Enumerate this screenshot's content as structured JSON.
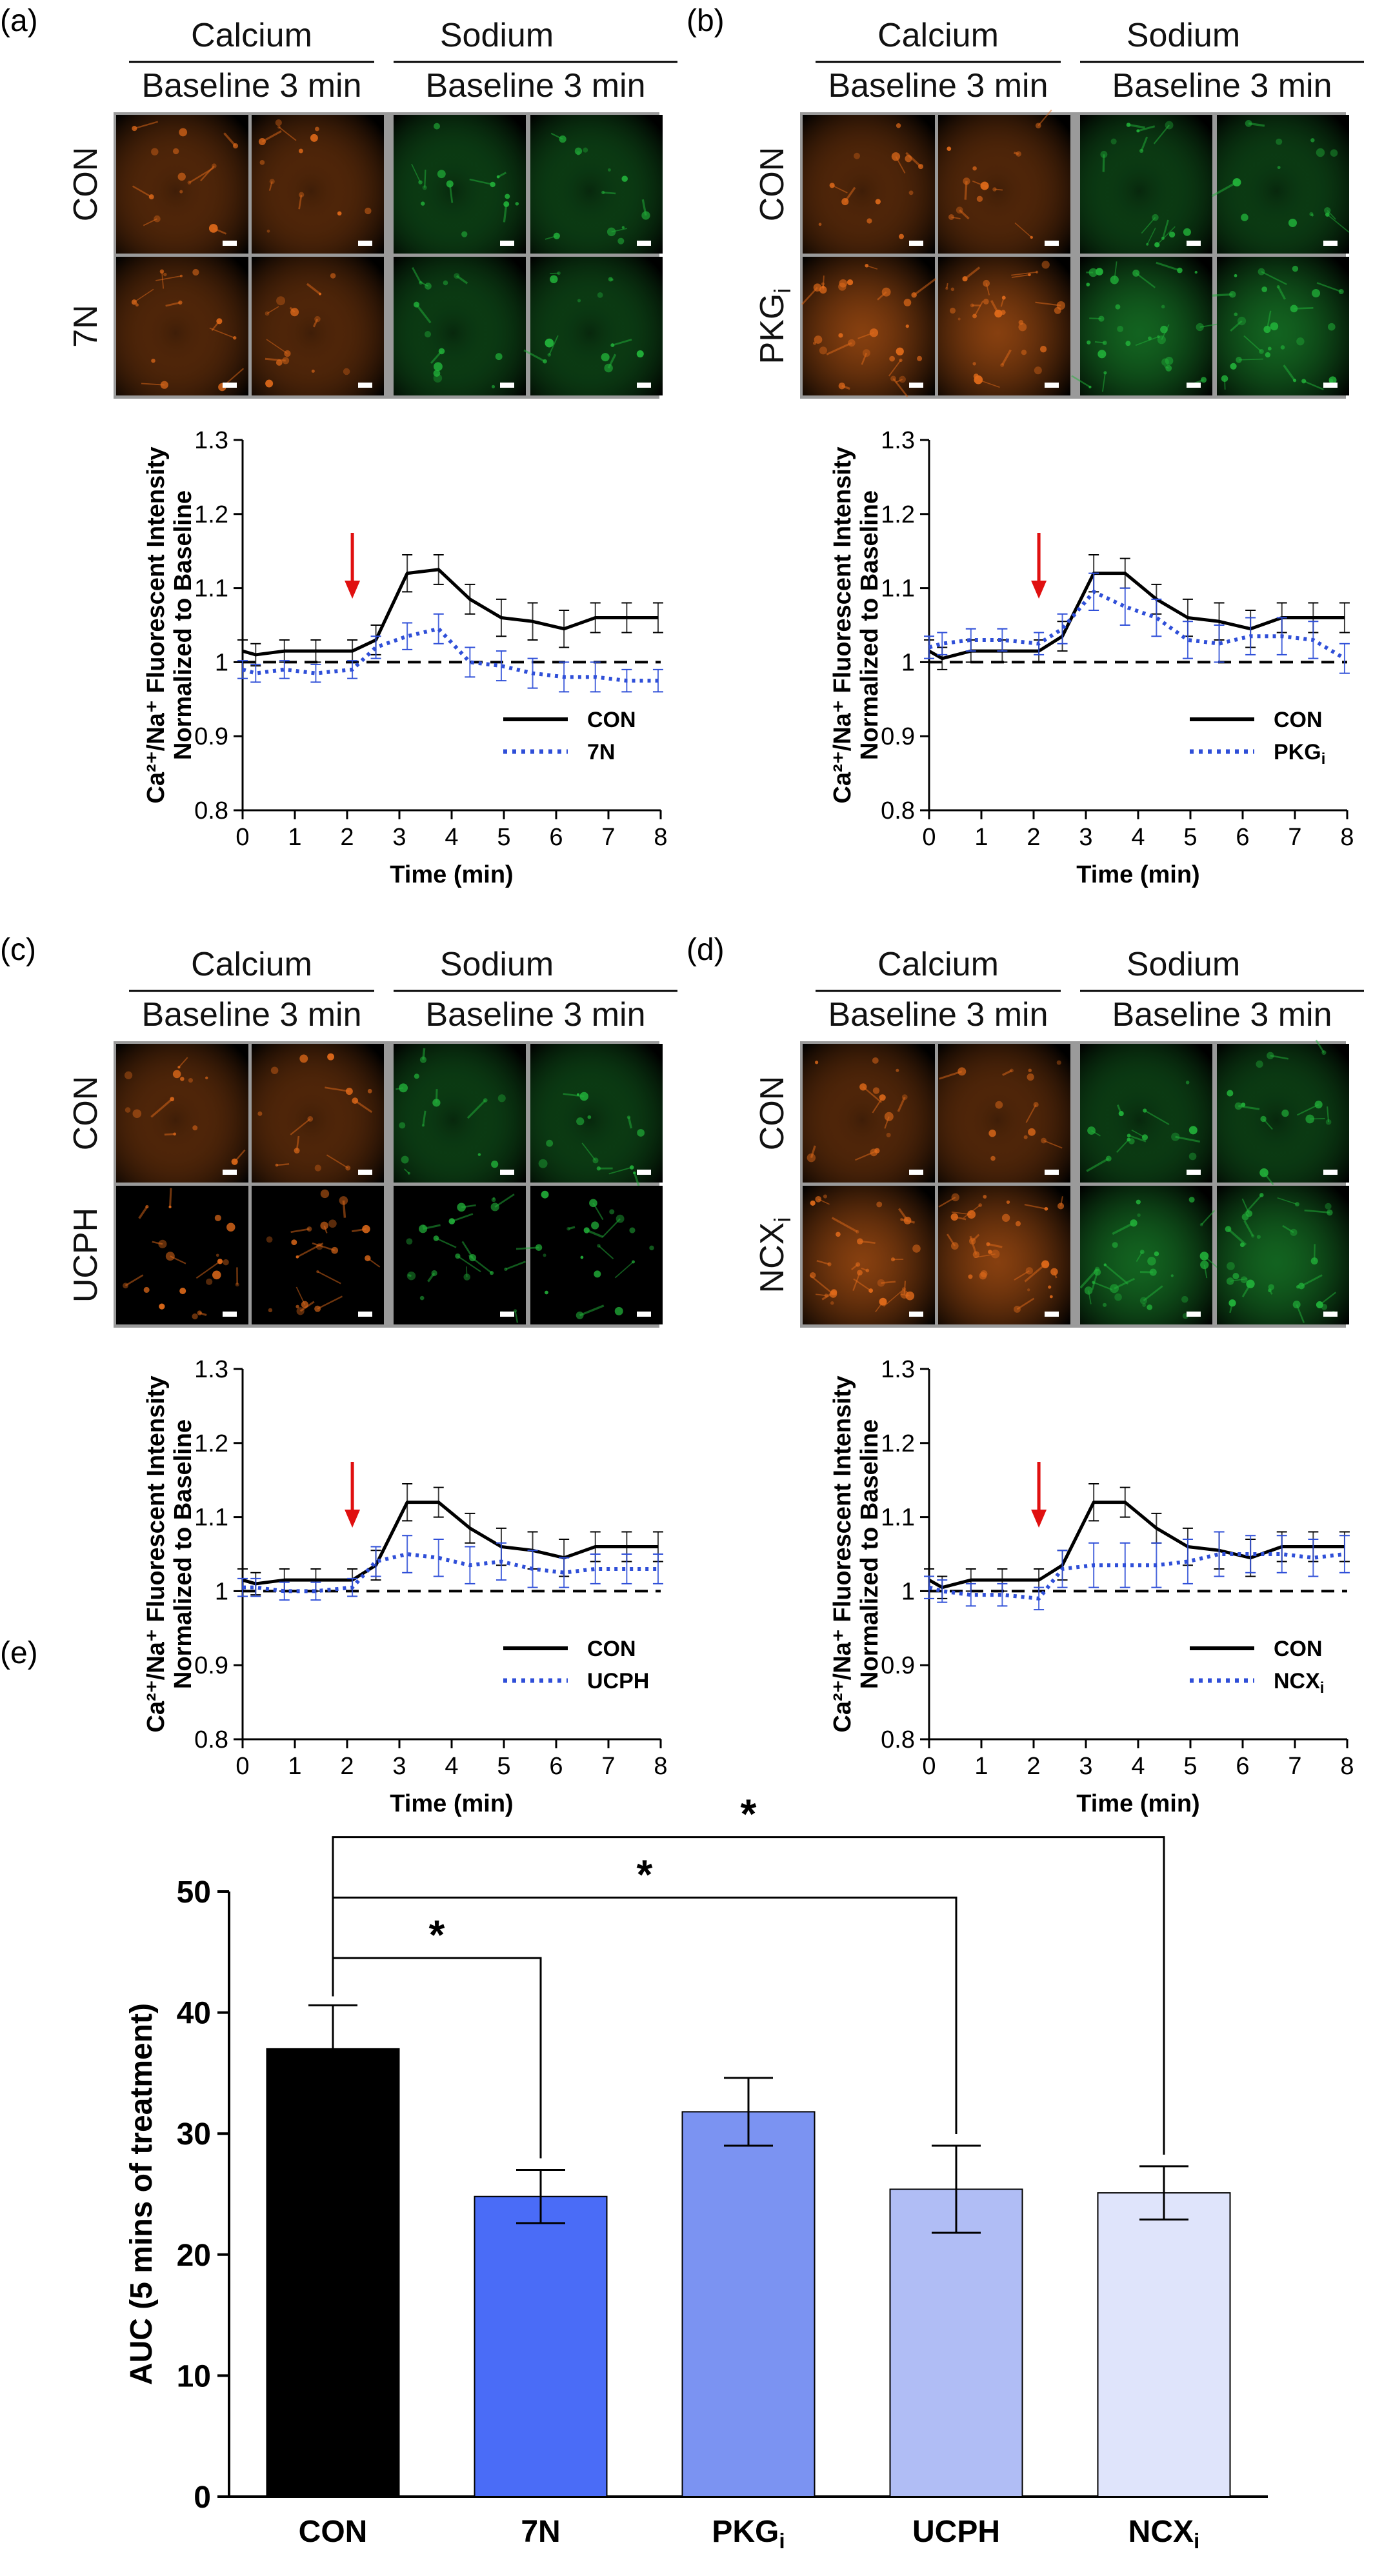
{
  "panels": [
    {
      "id": "a",
      "label": "(a)",
      "header_left": "Calcium",
      "header_right": "Sodium",
      "subheader": "Baseline 3 min",
      "row_labels": [
        {
          "text": "CON",
          "sub": ""
        },
        {
          "text": "7N",
          "sub": ""
        }
      ],
      "row2_intensity": "low"
    },
    {
      "id": "b",
      "label": "(b)",
      "header_left": "Calcium",
      "header_right": "Sodium",
      "subheader": "Baseline 3 min",
      "row_labels": [
        {
          "text": "CON",
          "sub": ""
        },
        {
          "text": "PKG",
          "sub": "i"
        }
      ],
      "row2_intensity": "high"
    },
    {
      "id": "c",
      "label": "(c)",
      "header_left": "Calcium",
      "header_right": "Sodium",
      "subheader": "Baseline 3 min",
      "row_labels": [
        {
          "text": "CON",
          "sub": ""
        },
        {
          "text": "UCPH",
          "sub": ""
        }
      ],
      "row2_intensity": "medium"
    },
    {
      "id": "d",
      "label": "(d)",
      "header_left": "Calcium",
      "header_right": "Sodium",
      "subheader": "Baseline 3 min",
      "row_labels": [
        {
          "text": "CON",
          "sub": ""
        },
        {
          "text": "NCX",
          "sub": "i"
        }
      ],
      "row2_intensity": "high"
    }
  ],
  "colors": {
    "con": "#000000",
    "treatment": "#2f4fd8",
    "arrow": "#e01010",
    "calcium": "#e06a1a",
    "sodium": "#22b33a",
    "frame": "#9a9a9a",
    "bars": [
      "#000000",
      "#4a6cf7",
      "#7b93f2",
      "#b0bdf5",
      "#dfe4fb"
    ]
  },
  "chart_data": [
    {
      "type": "line",
      "panel": "a",
      "xlabel": "Time (min)",
      "ylabel_line1": "Ca²⁺/Na⁺ Fluorescent Intensity",
      "ylabel_line2": "Normalized to Baseline",
      "xlim": [
        0,
        8
      ],
      "ylim": [
        0.8,
        1.3
      ],
      "xticks": [
        0,
        1,
        2,
        3,
        4,
        5,
        6,
        7,
        8
      ],
      "yticks": [
        "0.8",
        "0.9",
        "1",
        "1.1",
        "1.2",
        "1.3"
      ],
      "baseline": 1.0,
      "arrow_x": 2.1,
      "legend_position": "bottom-right",
      "x": [
        0.0,
        0.25,
        0.8,
        1.4,
        2.1,
        2.55,
        3.15,
        3.75,
        4.35,
        4.95,
        5.55,
        6.15,
        6.75,
        7.35,
        7.95
      ],
      "series": [
        {
          "name": "CON",
          "style": "solid",
          "values": [
            1.015,
            1.01,
            1.015,
            1.015,
            1.015,
            1.03,
            1.12,
            1.125,
            1.085,
            1.06,
            1.055,
            1.045,
            1.06,
            1.06,
            1.06
          ],
          "errors": [
            0.015,
            0.015,
            0.015,
            0.015,
            0.015,
            0.02,
            0.025,
            0.02,
            0.02,
            0.025,
            0.025,
            0.025,
            0.02,
            0.02,
            0.02
          ]
        },
        {
          "name": "7N",
          "sub": "",
          "style": "dotted",
          "values": [
            0.99,
            0.985,
            0.99,
            0.985,
            0.99,
            1.02,
            1.035,
            1.045,
            1.0,
            0.995,
            0.985,
            0.98,
            0.98,
            0.975,
            0.975
          ],
          "errors": [
            0.012,
            0.012,
            0.012,
            0.012,
            0.012,
            0.015,
            0.018,
            0.02,
            0.02,
            0.02,
            0.02,
            0.02,
            0.02,
            0.015,
            0.015
          ]
        }
      ]
    },
    {
      "type": "line",
      "panel": "b",
      "xlabel": "Time (min)",
      "ylabel_line1": "Ca²⁺/Na⁺ Fluorescent Intensity",
      "ylabel_line2": "Normalized to Baseline",
      "xlim": [
        0,
        8
      ],
      "ylim": [
        0.8,
        1.3
      ],
      "xticks": [
        0,
        1,
        2,
        3,
        4,
        5,
        6,
        7,
        8
      ],
      "yticks": [
        "0.8",
        "0.9",
        "1",
        "1.1",
        "1.2",
        "1.3"
      ],
      "baseline": 1.0,
      "arrow_x": 2.1,
      "legend_position": "bottom-right",
      "x": [
        0.0,
        0.25,
        0.8,
        1.4,
        2.1,
        2.55,
        3.15,
        3.75,
        4.35,
        4.95,
        5.55,
        6.15,
        6.75,
        7.35,
        7.95
      ],
      "series": [
        {
          "name": "CON",
          "style": "solid",
          "values": [
            1.015,
            1.005,
            1.015,
            1.015,
            1.015,
            1.035,
            1.12,
            1.12,
            1.085,
            1.06,
            1.055,
            1.045,
            1.06,
            1.06,
            1.06
          ],
          "errors": [
            0.015,
            0.015,
            0.015,
            0.015,
            0.015,
            0.02,
            0.025,
            0.02,
            0.02,
            0.025,
            0.025,
            0.025,
            0.02,
            0.02,
            0.02
          ]
        },
        {
          "name": "PKG",
          "sub": "i",
          "style": "dotted",
          "values": [
            1.02,
            1.025,
            1.03,
            1.03,
            1.025,
            1.045,
            1.095,
            1.075,
            1.06,
            1.03,
            1.025,
            1.035,
            1.035,
            1.03,
            1.005
          ],
          "errors": [
            0.015,
            0.015,
            0.015,
            0.015,
            0.015,
            0.02,
            0.025,
            0.025,
            0.025,
            0.025,
            0.025,
            0.025,
            0.025,
            0.025,
            0.02
          ]
        }
      ]
    },
    {
      "type": "line",
      "panel": "c",
      "xlabel": "Time (min)",
      "ylabel_line1": "Ca²⁺/Na⁺ Fluorescent Intensity",
      "ylabel_line2": "Normalized to Baseline",
      "xlim": [
        0,
        8
      ],
      "ylim": [
        0.8,
        1.3
      ],
      "xticks": [
        0,
        1,
        2,
        3,
        4,
        5,
        6,
        7,
        8
      ],
      "yticks": [
        "0.8",
        "0.9",
        "1",
        "1.1",
        "1.2",
        "1.3"
      ],
      "baseline": 1.0,
      "arrow_x": 2.1,
      "legend_position": "bottom-right",
      "x": [
        0.0,
        0.25,
        0.8,
        1.4,
        2.1,
        2.55,
        3.15,
        3.75,
        4.35,
        4.95,
        5.55,
        6.15,
        6.75,
        7.35,
        7.95
      ],
      "series": [
        {
          "name": "CON",
          "style": "solid",
          "values": [
            1.015,
            1.01,
            1.015,
            1.015,
            1.015,
            1.035,
            1.12,
            1.12,
            1.085,
            1.06,
            1.055,
            1.045,
            1.06,
            1.06,
            1.06
          ],
          "errors": [
            0.015,
            0.015,
            0.015,
            0.015,
            0.015,
            0.02,
            0.025,
            0.02,
            0.02,
            0.025,
            0.025,
            0.025,
            0.02,
            0.02,
            0.02
          ]
        },
        {
          "name": "UCPH",
          "sub": "",
          "style": "dotted",
          "values": [
            1.005,
            1.005,
            1.0,
            1.0,
            1.005,
            1.04,
            1.05,
            1.045,
            1.035,
            1.04,
            1.03,
            1.025,
            1.03,
            1.03,
            1.03
          ],
          "errors": [
            0.012,
            0.012,
            0.012,
            0.012,
            0.012,
            0.02,
            0.025,
            0.025,
            0.025,
            0.025,
            0.025,
            0.02,
            0.02,
            0.02,
            0.02
          ]
        }
      ]
    },
    {
      "type": "line",
      "panel": "d",
      "xlabel": "Time (min)",
      "ylabel_line1": "Ca²⁺/Na⁺ Fluorescent Intensity",
      "ylabel_line2": "Normalized to Baseline",
      "xlim": [
        0,
        8
      ],
      "ylim": [
        0.8,
        1.3
      ],
      "xticks": [
        0,
        1,
        2,
        3,
        4,
        5,
        6,
        7,
        8
      ],
      "yticks": [
        "0.8",
        "0.9",
        "1",
        "1.1",
        "1.2",
        "1.3"
      ],
      "baseline": 1.0,
      "arrow_x": 2.1,
      "legend_position": "bottom-right",
      "x": [
        0.0,
        0.25,
        0.8,
        1.4,
        2.1,
        2.55,
        3.15,
        3.75,
        4.35,
        4.95,
        5.55,
        6.15,
        6.75,
        7.35,
        7.95
      ],
      "series": [
        {
          "name": "CON",
          "style": "solid",
          "values": [
            1.015,
            1.005,
            1.015,
            1.015,
            1.015,
            1.035,
            1.12,
            1.12,
            1.085,
            1.06,
            1.055,
            1.045,
            1.06,
            1.06,
            1.06
          ],
          "errors": [
            0.015,
            0.015,
            0.015,
            0.015,
            0.015,
            0.02,
            0.025,
            0.02,
            0.02,
            0.025,
            0.025,
            0.025,
            0.02,
            0.02,
            0.02
          ]
        },
        {
          "name": "NCX",
          "sub": "i",
          "style": "dotted",
          "values": [
            1.005,
            1.0,
            0.995,
            0.995,
            0.99,
            1.03,
            1.035,
            1.035,
            1.035,
            1.04,
            1.05,
            1.05,
            1.05,
            1.045,
            1.05
          ],
          "errors": [
            0.015,
            0.015,
            0.015,
            0.015,
            0.015,
            0.025,
            0.03,
            0.03,
            0.03,
            0.03,
            0.03,
            0.025,
            0.025,
            0.025,
            0.025
          ]
        }
      ]
    },
    {
      "type": "bar",
      "panel": "e",
      "label": "(e)",
      "ylabel": "AUC (5 mins of treatment)",
      "ylim": [
        0,
        50
      ],
      "yticks": [
        "0",
        "10",
        "20",
        "30",
        "40",
        "50"
      ],
      "categories": [
        {
          "text": "CON",
          "sub": ""
        },
        {
          "text": "7N",
          "sub": ""
        },
        {
          "text": "PKG",
          "sub": "i"
        },
        {
          "text": "UCPH",
          "sub": ""
        },
        {
          "text": "NCX",
          "sub": "i"
        }
      ],
      "values": [
        37.0,
        24.8,
        31.8,
        25.4,
        25.1
      ],
      "errors": [
        3.6,
        2.2,
        2.8,
        3.6,
        2.2
      ],
      "significance": [
        {
          "from": 0,
          "to": 1,
          "label": "*",
          "y": 44.5
        },
        {
          "from": 0,
          "to": 3,
          "label": "*",
          "y": 49.5
        },
        {
          "from": 0,
          "to": 4,
          "label": "*",
          "y": 54.5
        }
      ]
    }
  ]
}
